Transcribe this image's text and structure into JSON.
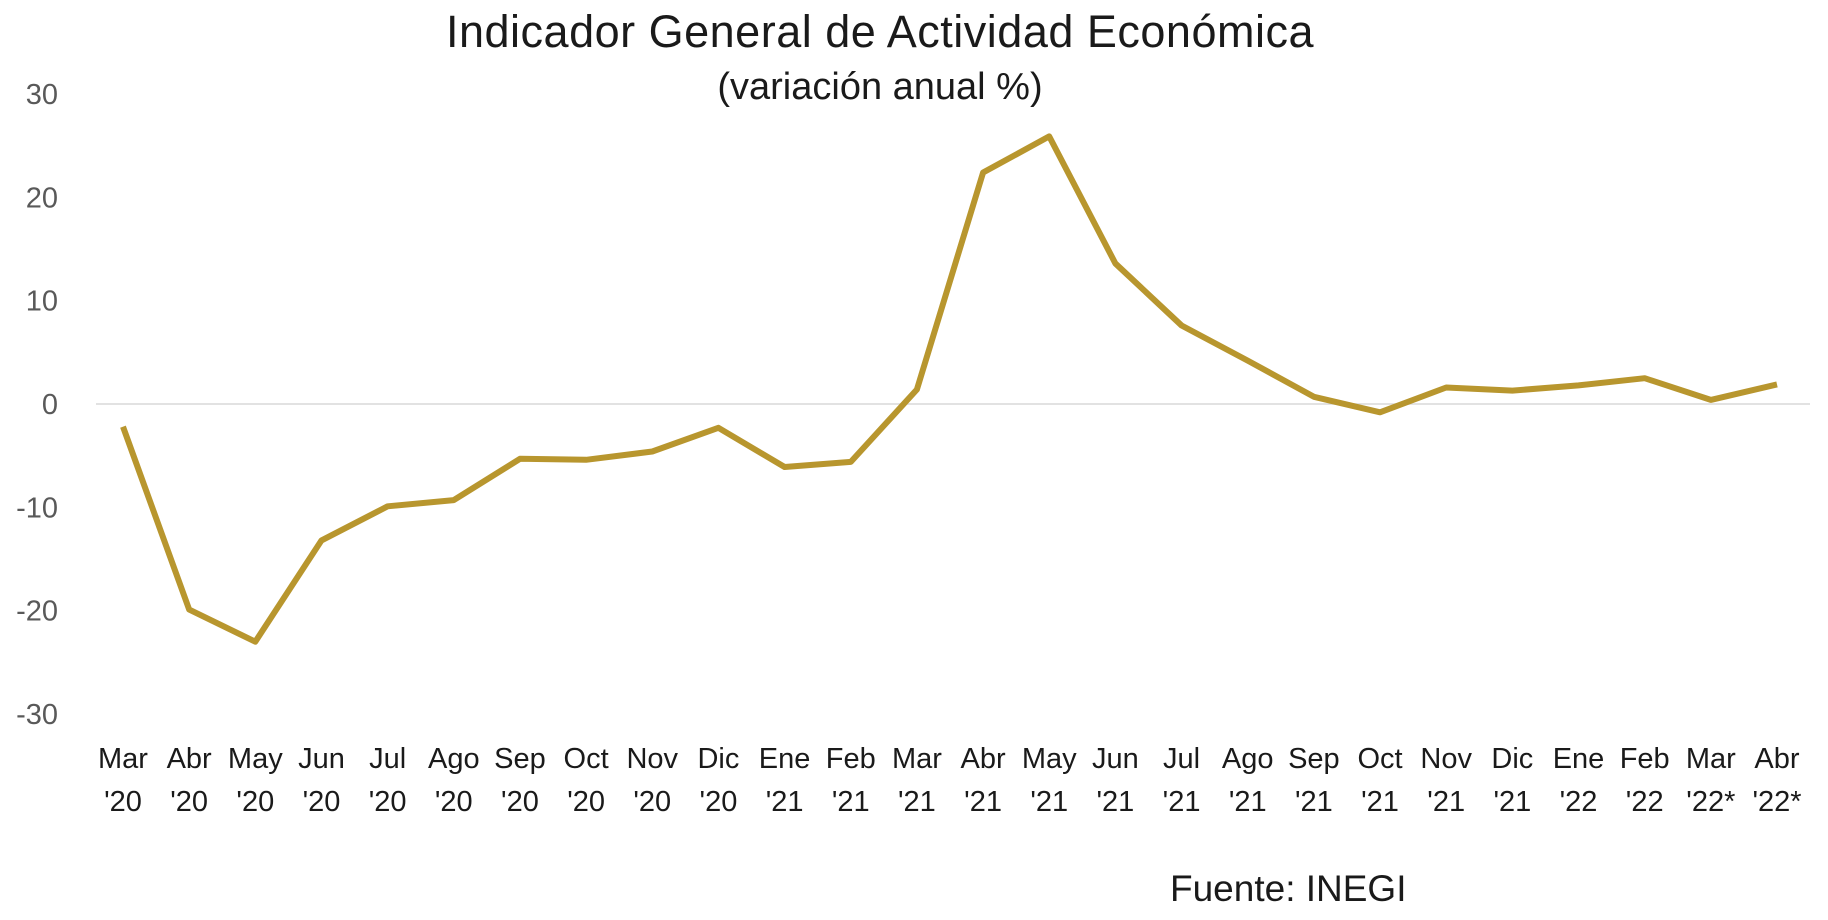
{
  "chart_data": {
    "type": "line",
    "title": "Indicador General de Actividad Económica",
    "subtitle": "(variación anual %)",
    "xlabel": "",
    "ylabel": "",
    "ylim": [
      -30,
      30
    ],
    "yticks": [
      30,
      20,
      10,
      0,
      -10,
      -20,
      -30
    ],
    "yticks_labels": [
      "30",
      "20",
      "10",
      "0",
      "-10",
      "-20",
      "-30"
    ],
    "grid": false,
    "zero_line": true,
    "legend": "none",
    "categories": [
      [
        "Mar",
        "'20"
      ],
      [
        "Abr",
        "'20"
      ],
      [
        "May",
        "'20"
      ],
      [
        "Jun",
        "'20"
      ],
      [
        "Jul",
        "'20"
      ],
      [
        "Ago",
        "'20"
      ],
      [
        "Sep",
        "'20"
      ],
      [
        "Oct",
        "'20"
      ],
      [
        "Nov",
        "'20"
      ],
      [
        "Dic",
        "'20"
      ],
      [
        "Ene",
        "'21"
      ],
      [
        "Feb",
        "'21"
      ],
      [
        "Mar",
        "'21"
      ],
      [
        "Abr",
        "'21"
      ],
      [
        "May",
        "'21"
      ],
      [
        "Jun",
        "'21"
      ],
      [
        "Jul",
        "'21"
      ],
      [
        "Ago",
        "'21"
      ],
      [
        "Sep",
        "'21"
      ],
      [
        "Oct",
        "'21"
      ],
      [
        "Nov",
        "'21"
      ],
      [
        "Dic",
        "'21"
      ],
      [
        "Ene",
        "'22"
      ],
      [
        "Feb",
        "'22"
      ],
      [
        "Mar",
        "'22*"
      ],
      [
        "Abr",
        "'22*"
      ]
    ],
    "series": [
      {
        "color": "#B8962E",
        "values": [
          -2.2,
          -19.9,
          -23.0,
          -13.2,
          -9.9,
          -9.3,
          -5.3,
          -5.4,
          -4.6,
          -2.3,
          -6.1,
          -5.6,
          1.4,
          22.4,
          25.9,
          13.6,
          7.6,
          4.2,
          0.7,
          -0.8,
          1.6,
          1.3,
          1.8,
          2.5,
          0.4,
          1.9
        ]
      }
    ],
    "source": "Fuente: INEGI"
  },
  "colors": {
    "line": "#B8962E",
    "zero_line": "#d9d9d9",
    "axis_text": "#595959",
    "text": "#1a1a1a"
  }
}
